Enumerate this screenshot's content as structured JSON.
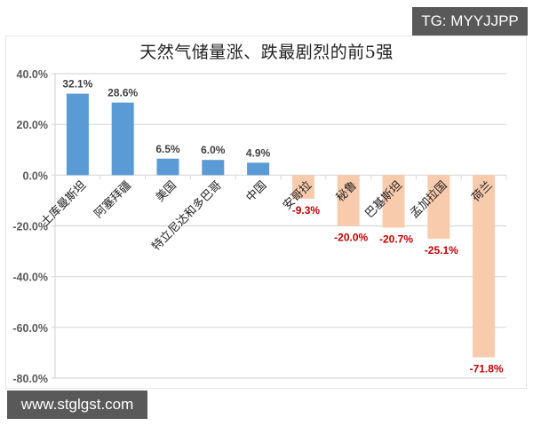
{
  "watermarks": {
    "top_right": "TG: MYYJJPP",
    "bottom_left": "www.stglgst.com"
  },
  "colors": {
    "positive_bar": "#5B9BD5",
    "negative_bar": "#F8CBAD",
    "positive_label": "#404040",
    "negative_label": "#C00000",
    "gridline": "#d9d9d9",
    "axis_text": "#595959",
    "badge_bg": "#595959"
  },
  "chart_data": {
    "type": "bar",
    "title": "天然气储量涨、跌最剧烈的前5强",
    "xlabel": "",
    "ylabel": "",
    "categories": [
      "土库曼斯坦",
      "阿塞拜疆",
      "美国",
      "特立尼达和多巴哥",
      "中国",
      "安哥拉",
      "秘鲁",
      "巴基斯坦",
      "孟加拉国",
      "荷兰"
    ],
    "values": [
      32.1,
      28.6,
      6.5,
      6.0,
      4.9,
      -9.3,
      -20.0,
      -20.7,
      -25.1,
      -71.8
    ],
    "value_labels": [
      "32.1%",
      "28.6%",
      "6.5%",
      "6.0%",
      "4.9%",
      "-9.3%",
      "-20.0%",
      "-20.7%",
      "-25.1%",
      "-71.8%"
    ],
    "ylim": [
      -80,
      40
    ],
    "yticks": [
      40,
      20,
      0,
      -20,
      -40,
      -60,
      -80
    ],
    "ytick_labels": [
      "40.0%",
      "20.0%",
      "0.0%",
      "-20.0%",
      "-40.0%",
      "-60.0%",
      "-80.0%"
    ],
    "grid": true,
    "legend": null,
    "category_label_rotation": -45
  }
}
